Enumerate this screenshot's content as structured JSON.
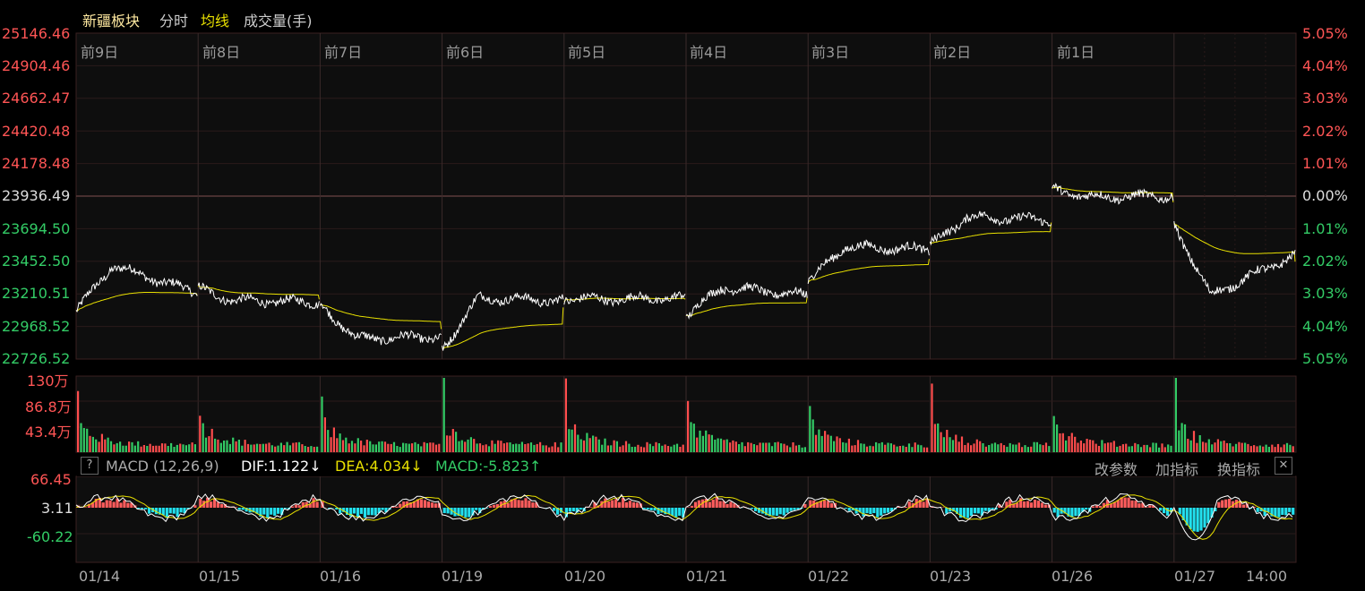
{
  "header": {
    "title": "新疆板块",
    "tab_fenshi": "分时",
    "tab_junxian": "均线",
    "tab_volume": "成交量(手)"
  },
  "colors": {
    "up": "#ff4d4d",
    "down": "#33cc66",
    "price": "#ffffff",
    "avg": "#e8e000",
    "grid": "#3a1e1e",
    "macd_pos": "#ff5c5c",
    "macd_neg": "#22e0ee"
  },
  "price_axis": {
    "left": [
      "25146.46",
      "24904.46",
      "24662.47",
      "24420.48",
      "24178.48",
      "23936.49",
      "23694.50",
      "23452.50",
      "23210.51",
      "22968.52",
      "22726.52"
    ],
    "right": [
      "5.05%",
      "4.04%",
      "3.03%",
      "2.02%",
      "1.01%",
      "0.00%",
      "1.01%",
      "2.02%",
      "3.03%",
      "4.04%",
      "5.05%"
    ],
    "base": 23936.49,
    "max": 25146.46,
    "min": 22726.52
  },
  "day_headers": [
    "前9日",
    "前8日",
    "前7日",
    "前6日",
    "前5日",
    "前4日",
    "前3日",
    "前2日",
    "前1日"
  ],
  "volume_axis": [
    "130万",
    "86.8万",
    "43.4万"
  ],
  "macd": {
    "help": "?",
    "name": "MACD (12,26,9)",
    "dif": "DIF:1.122↓",
    "dea": "DEA:4.034↓",
    "macd": "MACD:-5.823↑",
    "btn_params": "改参数",
    "btn_add": "加指标",
    "btn_switch": "换指标",
    "close": "✕",
    "axis": [
      "66.45",
      "3.11",
      "-60.22"
    ]
  },
  "x_axis": [
    "01/14",
    "01/15",
    "01/16",
    "01/19",
    "01/20",
    "01/21",
    "01/22",
    "01/23",
    "01/26",
    "01/27",
    "14:00"
  ],
  "chart_data": {
    "type": "line",
    "title": "新疆板块",
    "series": [
      {
        "name": "分时",
        "day_close": [
          23220,
          23150,
          22890,
          23160,
          23180,
          23200,
          23540,
          23760,
          23936,
          23500
        ]
      },
      {
        "name": "均线",
        "day_close": [
          23200,
          23170,
          22950,
          23110,
          23170,
          23190,
          23470,
          23740,
          23890,
          23450
        ]
      }
    ],
    "x": [
      "01/14",
      "01/15",
      "01/16",
      "01/19",
      "01/20",
      "01/21",
      "01/22",
      "01/23",
      "01/26",
      "01/27"
    ],
    "ylim": [
      22726.52,
      25146.46
    ]
  }
}
